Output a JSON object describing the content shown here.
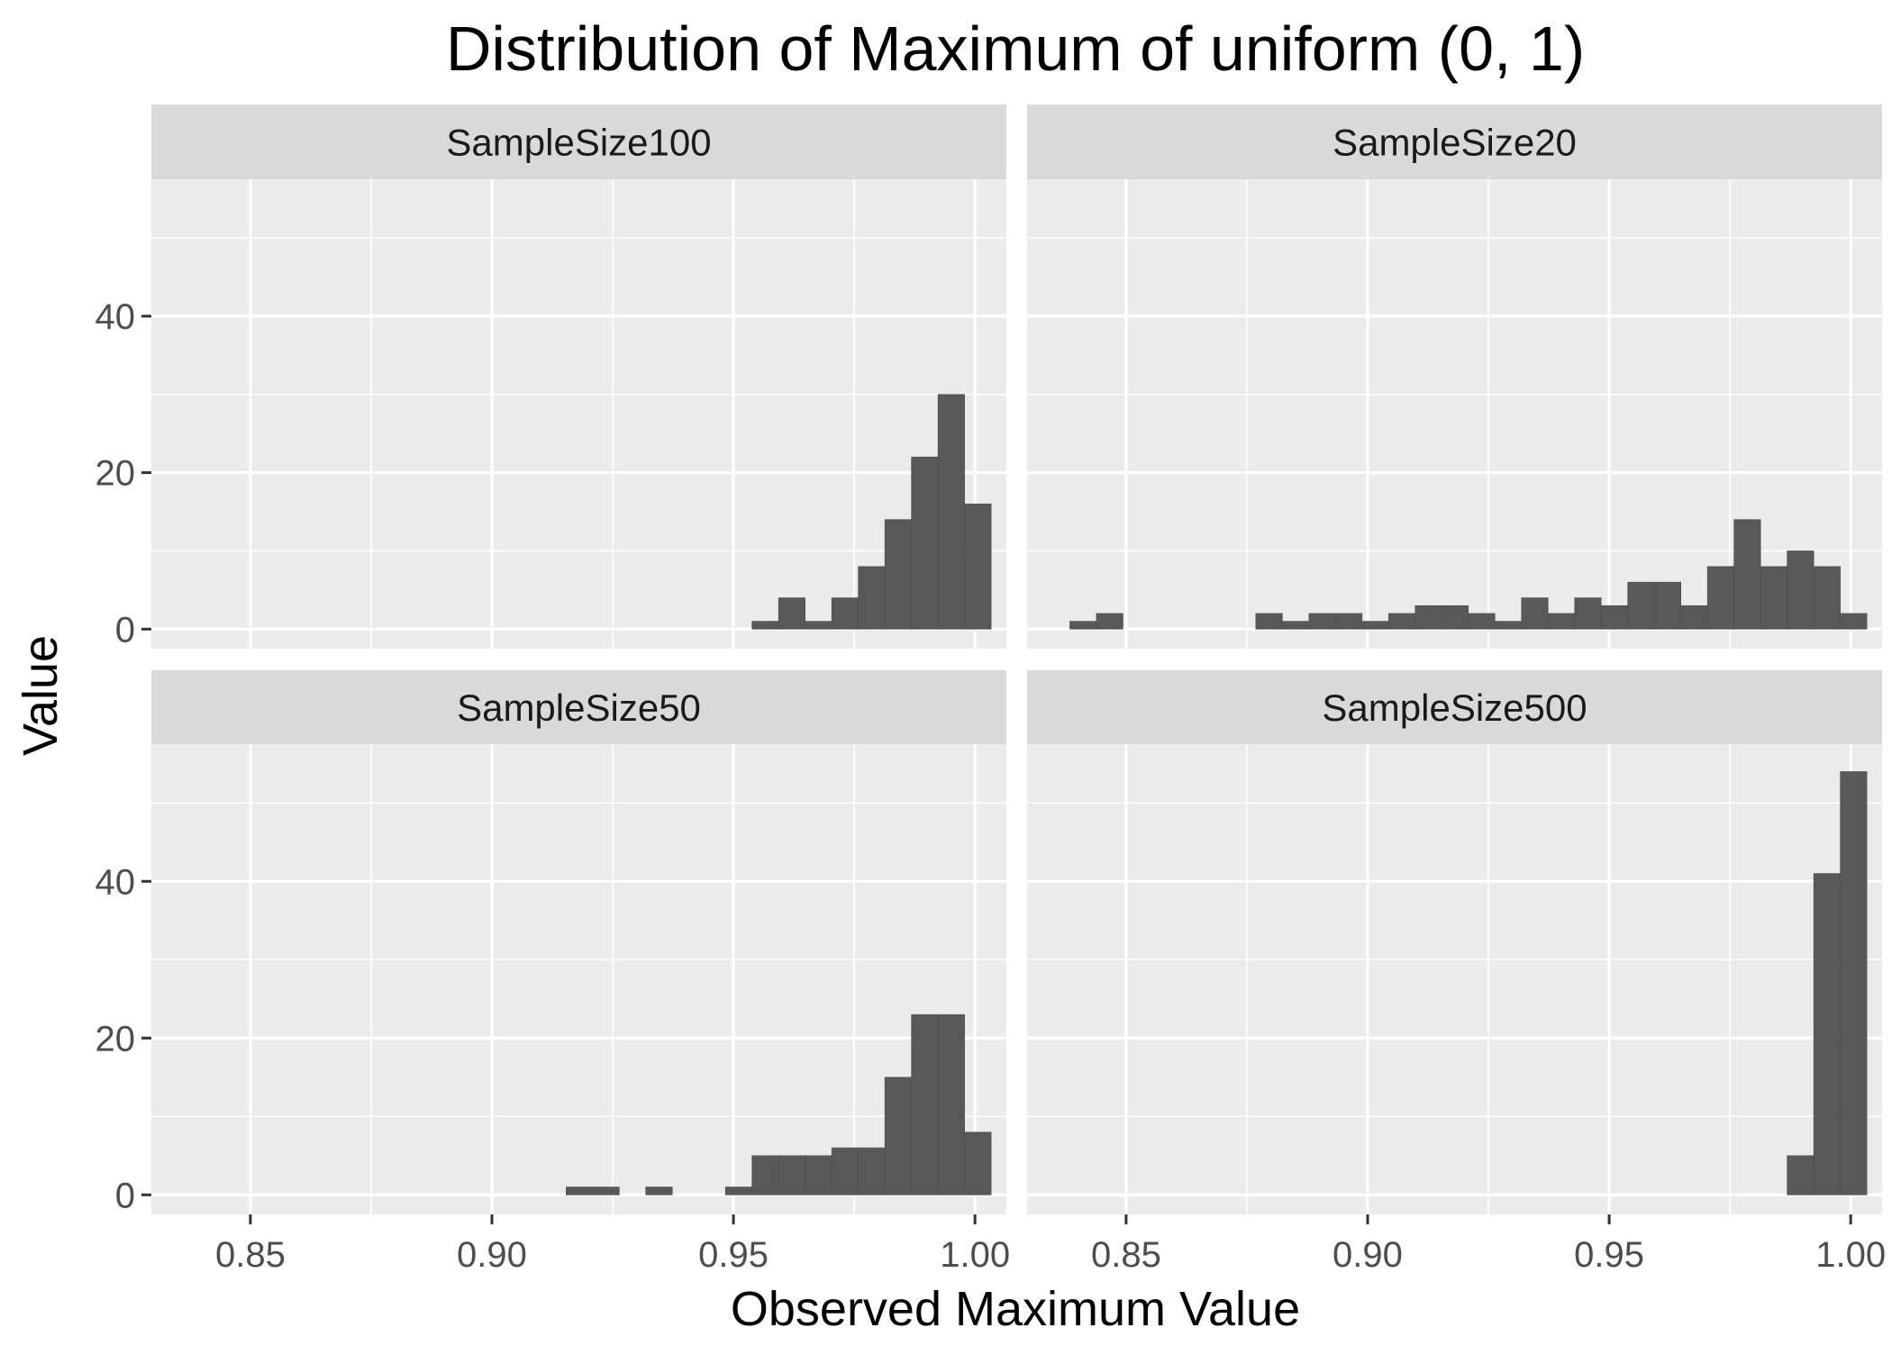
{
  "chart_data": {
    "type": "bar",
    "title": "Distribution of Maximum of uniform (0, 1)",
    "xlabel": "Observed Maximum Value",
    "ylabel": "Value",
    "xlim": [
      0.8295,
      1.0065
    ],
    "x_ticks": [
      0.85,
      0.9,
      0.95,
      1.0
    ],
    "x_tick_labels": [
      "0.85",
      "0.90",
      "0.95",
      "1.00"
    ],
    "ylim": [
      -2.5,
      57.5
    ],
    "y_ticks": [
      0,
      20,
      40
    ],
    "y_tick_labels": [
      "0",
      "20",
      "40"
    ],
    "grid": true,
    "bin_width": 0.0055,
    "panels": [
      {
        "label": "SampleSize100",
        "bars": [
          {
            "x": 0.9566,
            "count": 1
          },
          {
            "x": 0.9621,
            "count": 4
          },
          {
            "x": 0.9676,
            "count": 1
          },
          {
            "x": 0.9731,
            "count": 4
          },
          {
            "x": 0.9786,
            "count": 8
          },
          {
            "x": 0.9841,
            "count": 14
          },
          {
            "x": 0.9896,
            "count": 22
          },
          {
            "x": 0.9951,
            "count": 30
          },
          {
            "x": 1.0006,
            "count": 16
          }
        ]
      },
      {
        "label": "SampleSize20",
        "bars": [
          {
            "x": 0.8411,
            "count": 1
          },
          {
            "x": 0.8466,
            "count": 2
          },
          {
            "x": 0.8796,
            "count": 2
          },
          {
            "x": 0.8851,
            "count": 1
          },
          {
            "x": 0.8906,
            "count": 2
          },
          {
            "x": 0.8961,
            "count": 2
          },
          {
            "x": 0.9016,
            "count": 1
          },
          {
            "x": 0.9071,
            "count": 2
          },
          {
            "x": 0.9126,
            "count": 3
          },
          {
            "x": 0.9181,
            "count": 3
          },
          {
            "x": 0.9236,
            "count": 2
          },
          {
            "x": 0.9291,
            "count": 1
          },
          {
            "x": 0.9346,
            "count": 4
          },
          {
            "x": 0.9401,
            "count": 2
          },
          {
            "x": 0.9456,
            "count": 4
          },
          {
            "x": 0.9511,
            "count": 3
          },
          {
            "x": 0.9566,
            "count": 6
          },
          {
            "x": 0.9621,
            "count": 6
          },
          {
            "x": 0.9676,
            "count": 3
          },
          {
            "x": 0.9731,
            "count": 8
          },
          {
            "x": 0.9786,
            "count": 14
          },
          {
            "x": 0.9841,
            "count": 8
          },
          {
            "x": 0.9896,
            "count": 10
          },
          {
            "x": 0.9951,
            "count": 8
          },
          {
            "x": 1.0006,
            "count": 2
          }
        ]
      },
      {
        "label": "SampleSize50",
        "bars": [
          {
            "x": 0.9181,
            "count": 1
          },
          {
            "x": 0.9236,
            "count": 1
          },
          {
            "x": 0.9346,
            "count": 1
          },
          {
            "x": 0.9511,
            "count": 1
          },
          {
            "x": 0.9566,
            "count": 5
          },
          {
            "x": 0.9621,
            "count": 5
          },
          {
            "x": 0.9676,
            "count": 5
          },
          {
            "x": 0.9731,
            "count": 6
          },
          {
            "x": 0.9786,
            "count": 6
          },
          {
            "x": 0.9841,
            "count": 15
          },
          {
            "x": 0.9896,
            "count": 23
          },
          {
            "x": 0.9951,
            "count": 23
          },
          {
            "x": 1.0006,
            "count": 8
          }
        ]
      },
      {
        "label": "SampleSize500",
        "bars": [
          {
            "x": 0.9896,
            "count": 5
          },
          {
            "x": 0.9951,
            "count": 41
          },
          {
            "x": 1.0006,
            "count": 54
          }
        ]
      }
    ]
  }
}
